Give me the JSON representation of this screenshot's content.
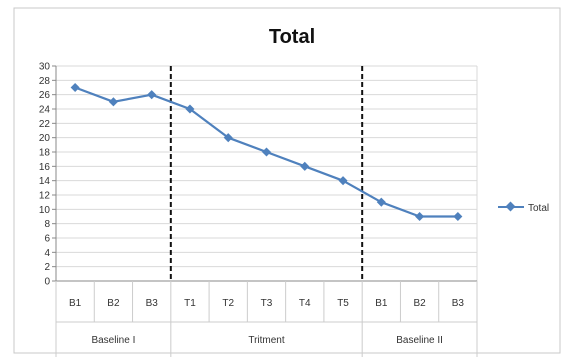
{
  "chart_data": {
    "type": "line",
    "title": "Total",
    "categories": [
      "B1",
      "B2",
      "B3",
      "T1",
      "T2",
      "T3",
      "T4",
      "T5",
      "B1",
      "B2",
      "B3"
    ],
    "groups": [
      {
        "label": "Baseline I",
        "span": 3
      },
      {
        "label": "Tritment",
        "span": 5
      },
      {
        "label": "Baseline II",
        "span": 3
      }
    ],
    "series": [
      {
        "name": "Total",
        "values": [
          27,
          25,
          26,
          24,
          20,
          18,
          16,
          14,
          11,
          9,
          9
        ],
        "color": "#4f81bd"
      }
    ],
    "ylim": [
      0,
      30
    ],
    "ytick_step": 2,
    "grid": true,
    "legend": "right",
    "phase_dividers": "dashed vertical lines between groups"
  }
}
